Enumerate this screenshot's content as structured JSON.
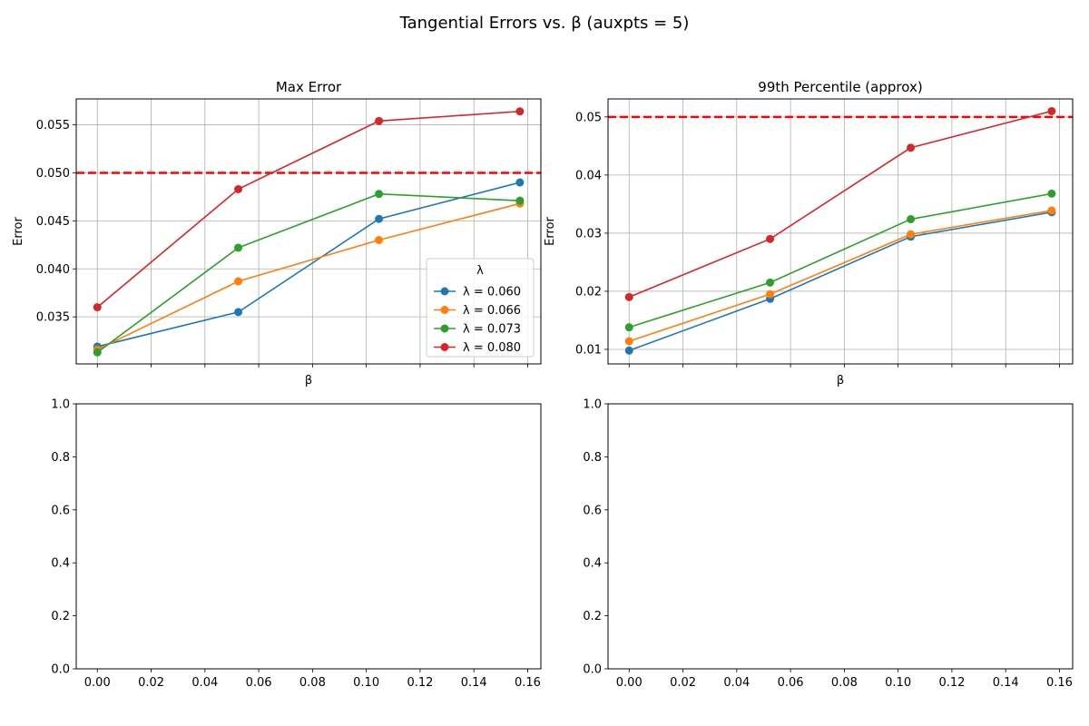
{
  "figure": {
    "suptitle": "Tangential Errors vs. β (auxpts = 5)"
  },
  "colors": {
    "series": [
      "#1f77b4",
      "#ff7f0e",
      "#2ca02c",
      "#d62728"
    ],
    "threshold": "#ff0000",
    "grid": "#b0b0b0",
    "axes": "#000000"
  },
  "chart_data": [
    {
      "type": "line",
      "title": "Max Error",
      "xlabel": "β",
      "ylabel": "Error",
      "x": [
        0.0,
        0.0524,
        0.1047,
        0.1571
      ],
      "xlim": [
        -0.00785,
        0.1649
      ],
      "ylim": [
        0.0301,
        0.0577
      ],
      "xticks": [
        0.0,
        0.02,
        0.04,
        0.06,
        0.08,
        0.1,
        0.12,
        0.14,
        0.16
      ],
      "show_xticklabels": false,
      "yticks": [
        0.035,
        0.04,
        0.045,
        0.05,
        0.055
      ],
      "yticklabels": [
        "0.035",
        "0.040",
        "0.045",
        "0.050",
        "0.055"
      ],
      "grid": true,
      "threshold": 0.05,
      "legend": {
        "title": "λ",
        "placement": "lower right"
      },
      "series": [
        {
          "name": "λ = 0.060",
          "values": [
            0.0319,
            0.0355,
            0.0452,
            0.049
          ]
        },
        {
          "name": "λ = 0.066",
          "values": [
            0.0316,
            0.0387,
            0.043,
            0.0468
          ]
        },
        {
          "name": "λ = 0.073",
          "values": [
            0.0313,
            0.0422,
            0.0478,
            0.0471
          ]
        },
        {
          "name": "λ = 0.080",
          "values": [
            0.036,
            0.0483,
            0.0554,
            0.0564
          ]
        }
      ]
    },
    {
      "type": "line",
      "title": "99th Percentile (approx)",
      "xlabel": "β",
      "ylabel": "Error",
      "x": [
        0.0,
        0.0524,
        0.1047,
        0.1571
      ],
      "xlim": [
        -0.00785,
        0.1649
      ],
      "ylim": [
        0.0075,
        0.0531
      ],
      "xticks": [
        0.0,
        0.02,
        0.04,
        0.06,
        0.08,
        0.1,
        0.12,
        0.14,
        0.16
      ],
      "show_xticklabels": false,
      "yticks": [
        0.01,
        0.02,
        0.03,
        0.04,
        0.05
      ],
      "yticklabels": [
        "0.01",
        "0.02",
        "0.03",
        "0.04",
        "0.05"
      ],
      "grid": true,
      "threshold": 0.05,
      "series": [
        {
          "name": "λ = 0.060",
          "values": [
            0.0098,
            0.0187,
            0.0294,
            0.0336
          ]
        },
        {
          "name": "λ = 0.066",
          "values": [
            0.0114,
            0.0195,
            0.0298,
            0.0339
          ]
        },
        {
          "name": "λ = 0.073",
          "values": [
            0.0138,
            0.0215,
            0.0324,
            0.0368
          ]
        },
        {
          "name": "λ = 0.080",
          "values": [
            0.019,
            0.029,
            0.0447,
            0.051
          ]
        }
      ]
    },
    {
      "type": "line",
      "title": "",
      "xlabel": "",
      "ylabel": "",
      "x": [],
      "xlim": [
        -0.00785,
        0.1649
      ],
      "ylim": [
        0,
        1
      ],
      "xticks": [
        0.0,
        0.02,
        0.04,
        0.06,
        0.08,
        0.1,
        0.12,
        0.14,
        0.16
      ],
      "xticklabels": [
        "0.00",
        "0.02",
        "0.04",
        "0.06",
        "0.08",
        "0.10",
        "0.12",
        "0.14",
        "0.16"
      ],
      "show_xticklabels": true,
      "yticks": [
        0.0,
        0.2,
        0.4,
        0.6,
        0.8,
        1.0
      ],
      "yticklabels": [
        "0.0",
        "0.2",
        "0.4",
        "0.6",
        "0.8",
        "1.0"
      ],
      "grid": false,
      "series": []
    },
    {
      "type": "line",
      "title": "",
      "xlabel": "",
      "ylabel": "",
      "x": [],
      "xlim": [
        -0.00785,
        0.1649
      ],
      "ylim": [
        0,
        1
      ],
      "xticks": [
        0.0,
        0.02,
        0.04,
        0.06,
        0.08,
        0.1,
        0.12,
        0.14,
        0.16
      ],
      "xticklabels": [
        "0.00",
        "0.02",
        "0.04",
        "0.06",
        "0.08",
        "0.10",
        "0.12",
        "0.14",
        "0.16"
      ],
      "show_xticklabels": true,
      "yticks": [
        0.0,
        0.2,
        0.4,
        0.6,
        0.8,
        1.0
      ],
      "yticklabels": [
        "0.0",
        "0.2",
        "0.4",
        "0.6",
        "0.8",
        "1.0"
      ],
      "grid": false,
      "series": []
    }
  ]
}
